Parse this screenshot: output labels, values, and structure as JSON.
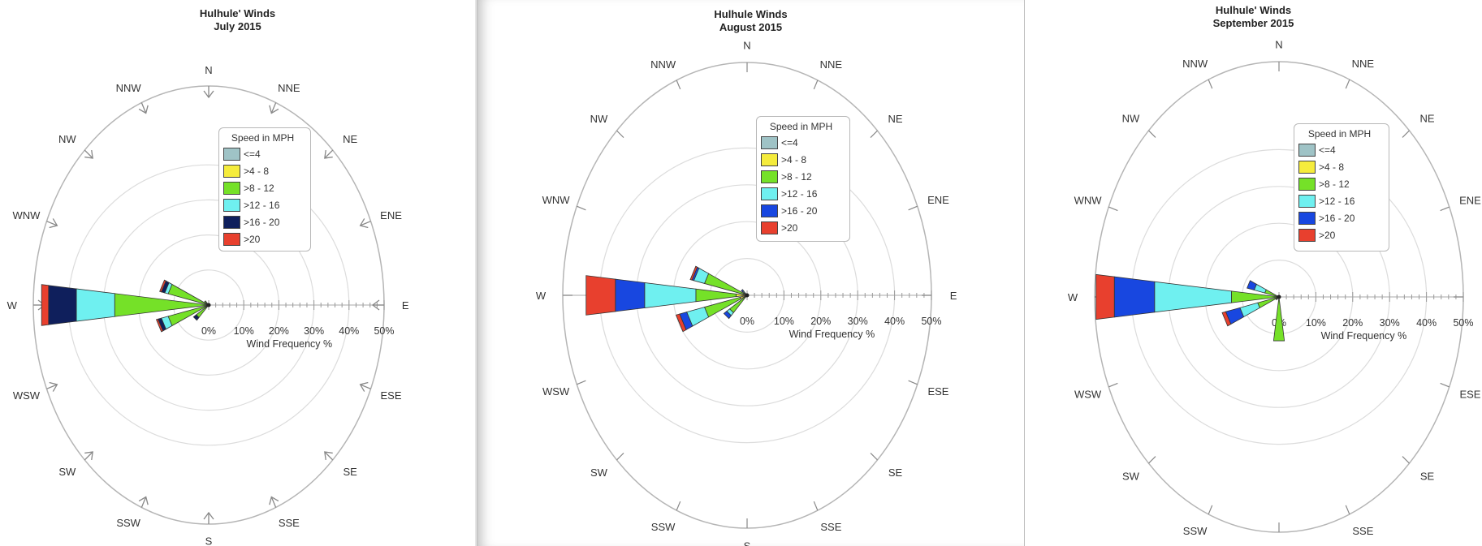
{
  "panels": [
    {
      "title_line1": "Hulhule' Winds",
      "title_line2": "July 2015"
    },
    {
      "title_line1": "Hulhule Winds",
      "title_line2": "August 2015"
    },
    {
      "title_line1": "Hulhule' Winds",
      "title_line2": "September 2015"
    }
  ],
  "legend": {
    "title": "Speed in MPH",
    "items": [
      {
        "label": "<=4",
        "color": "#9fc3c6"
      },
      {
        "label": ">4 - 8",
        "color": "#f5ec3c"
      },
      {
        "label": ">8 - 12",
        "color": "#75e128"
      },
      {
        "label": ">12 - 16",
        "color": "#6ff0f0"
      },
      {
        "label": ">16 - 20",
        "color": "#0f1f5c"
      },
      {
        "label": ">20",
        "color": "#e8402e"
      }
    ]
  },
  "legend_alt_color_16_20": "#1847e0",
  "chart_data": [
    {
      "type": "windrose",
      "title": "Hulhule' Winds\nJuly 2015",
      "xlabel": "Wind Frequency %",
      "radial_ticks": [
        "0%",
        "10%",
        "20%",
        "30%",
        "40%",
        "50%"
      ],
      "rmax": 50,
      "directions": [
        "N",
        "NNE",
        "NE",
        "ENE",
        "E",
        "ESE",
        "SE",
        "SSE",
        "S",
        "SSW",
        "SW",
        "WSW",
        "W",
        "WNW",
        "NW",
        "NNW"
      ],
      "legend_title": "Speed in MPH",
      "bins": [
        "<=4",
        ">4 - 8",
        ">8 - 12",
        ">12 - 16",
        ">16 - 20",
        ">20"
      ],
      "colors": [
        "#9fc3c6",
        "#f5ec3c",
        "#75e128",
        "#6ff0f0",
        "#0f1f5c",
        "#e8402e"
      ],
      "series": [
        {
          "direction": "W",
          "cumulative": [
            0,
            0,
            27,
            38,
            46,
            48
          ]
        },
        {
          "direction": "WNW",
          "cumulative": [
            0,
            0,
            12,
            13,
            14,
            14.5
          ]
        },
        {
          "direction": "WSW",
          "cumulative": [
            0,
            0,
            12,
            14,
            15,
            15.5
          ]
        },
        {
          "direction": "SW",
          "cumulative": [
            0,
            0,
            4.5,
            4.5,
            5.5,
            5.5
          ]
        },
        {
          "direction": "NW",
          "cumulative": [
            0,
            0,
            1.5,
            1.5,
            1.5,
            1.5
          ]
        }
      ]
    },
    {
      "type": "windrose",
      "title": "Hulhule Winds\nAugust 2015",
      "xlabel": "Wind Frequency %",
      "radial_ticks": [
        "0%",
        "10%",
        "20%",
        "30%",
        "40%",
        "50%"
      ],
      "rmax": 50,
      "directions": [
        "N",
        "NNE",
        "NE",
        "ENE",
        "E",
        "ESE",
        "SE",
        "SSE",
        "S",
        "SSW",
        "SW",
        "WSW",
        "W",
        "WNW",
        "NW",
        "NNW"
      ],
      "legend_title": "Speed in MPH",
      "bins": [
        "<=4",
        ">4 - 8",
        ">8 - 12",
        ">12 - 16",
        ">16 - 20",
        ">20"
      ],
      "colors": [
        "#9fc3c6",
        "#f5ec3c",
        "#75e128",
        "#6ff0f0",
        "#1847e0",
        "#e8402e"
      ],
      "series": [
        {
          "direction": "W",
          "cumulative": [
            0,
            3,
            14,
            28,
            36,
            44
          ]
        },
        {
          "direction": "WSW",
          "cumulative": [
            0,
            2,
            12,
            17,
            19,
            20
          ]
        },
        {
          "direction": "WNW",
          "cumulative": [
            0,
            1,
            12,
            15,
            15.5,
            16
          ]
        },
        {
          "direction": "SW",
          "cumulative": [
            0,
            0.5,
            6,
            7,
            8,
            8
          ]
        },
        {
          "direction": "NW",
          "cumulative": [
            0,
            0.5,
            1,
            1.5,
            2,
            2
          ]
        }
      ]
    },
    {
      "type": "windrose",
      "title": "Hulhule' Winds\nSeptember 2015",
      "xlabel": "Wind Frequency %",
      "radial_ticks": [
        "0%",
        "10%",
        "20%",
        "30%",
        "40%",
        "50%"
      ],
      "rmax": 50,
      "directions": [
        "N",
        "NNE",
        "NE",
        "ENE",
        "E",
        "ESE",
        "SE",
        "SSE",
        "S",
        "SSW",
        "SW",
        "WSW",
        "W",
        "WNW",
        "NW",
        "NNW"
      ],
      "legend_title": "Speed in MPH",
      "bins": [
        "<=4",
        ">4 - 8",
        ">8 - 12",
        ">12 - 16",
        ">16 - 20",
        ">20"
      ],
      "colors": [
        "#9fc3c6",
        "#f5ec3c",
        "#75e128",
        "#6ff0f0",
        "#1847e0",
        "#e8402e"
      ],
      "series": [
        {
          "direction": "W",
          "cumulative": [
            0,
            0,
            13,
            34,
            45,
            50
          ]
        },
        {
          "direction": "WSW",
          "cumulative": [
            0,
            0,
            6,
            11,
            15,
            16
          ]
        },
        {
          "direction": "WNW",
          "cumulative": [
            0,
            0,
            4,
            7,
            9,
            9
          ]
        },
        {
          "direction": "S",
          "cumulative": [
            0,
            0,
            12,
            12,
            12,
            12
          ]
        },
        {
          "direction": "SW",
          "cumulative": [
            0,
            0,
            1,
            1,
            1,
            1
          ]
        }
      ]
    }
  ]
}
